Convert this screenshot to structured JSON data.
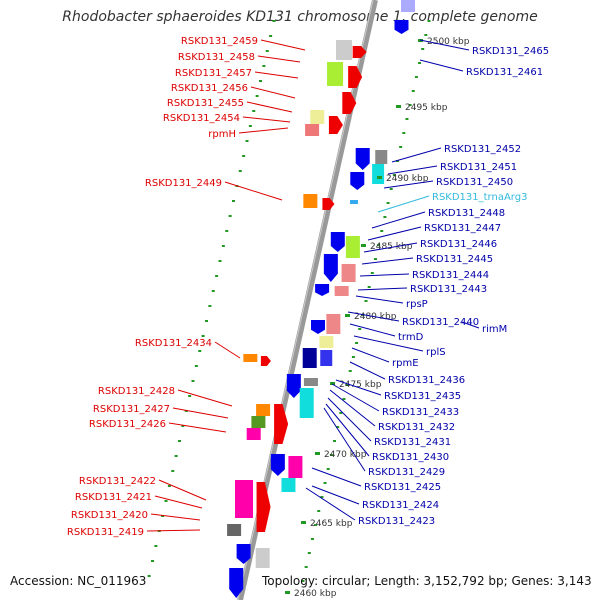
{
  "title": "Rhodobacter sphaeroides KD131 chromosome 1, complete genome",
  "accession": "Accession: NC_011963",
  "stats": "Topology: circular; Length: 3,152,792 bp; Genes: 3,143",
  "scale_labels": [
    "2500 kbp",
    "2495 kbp",
    "2490 kbp",
    "2485 kbp",
    "2480 kbp",
    "2475 kbp",
    "2470 kbp",
    "2465 kbp",
    "2460 kbp"
  ],
  "colors": {
    "left_labels": "#dd0000",
    "right_labels": "#0000aa",
    "trna_label": "#33bbdd",
    "backbone": "#888888",
    "ticks": "#229922"
  },
  "left_labels": [
    "RSKD131_2459",
    "RSKD131_2458",
    "RSKD131_2457",
    "RSKD131_2456",
    "RSKD131_2455",
    "RSKD131_2454",
    "rpmH",
    "RSKD131_2449",
    "RSKD131_2434",
    "RSKD131_2428",
    "RSKD131_2427",
    "RSKD131_2426",
    "RSKD131_2422",
    "RSKD131_2421",
    "RSKD131_2420",
    "RSKD131_2419"
  ],
  "right_labels": [
    "RSKD131_2465",
    "RSKD131_2461",
    "RSKD131_2452",
    "RSKD131_2451",
    "RSKD131_2450",
    "RSKD131_trnaArg3",
    "RSKD131_2448",
    "RSKD131_2447",
    "RSKD131_2446",
    "RSKD131_2445",
    "RSKD131_2444",
    "RSKD131_2443",
    "rpsP",
    "RSKD131_2440",
    "rimM",
    "trmD",
    "rplS",
    "rpmE",
    "RSKD131_2436",
    "RSKD131_2435",
    "RSKD131_2433",
    "RSKD131_2432",
    "RSKD131_2431",
    "RSKD131_2430",
    "RSKD131_2429",
    "RSKD131_2425",
    "RSKD131_2424",
    "RSKD131_2423"
  ]
}
